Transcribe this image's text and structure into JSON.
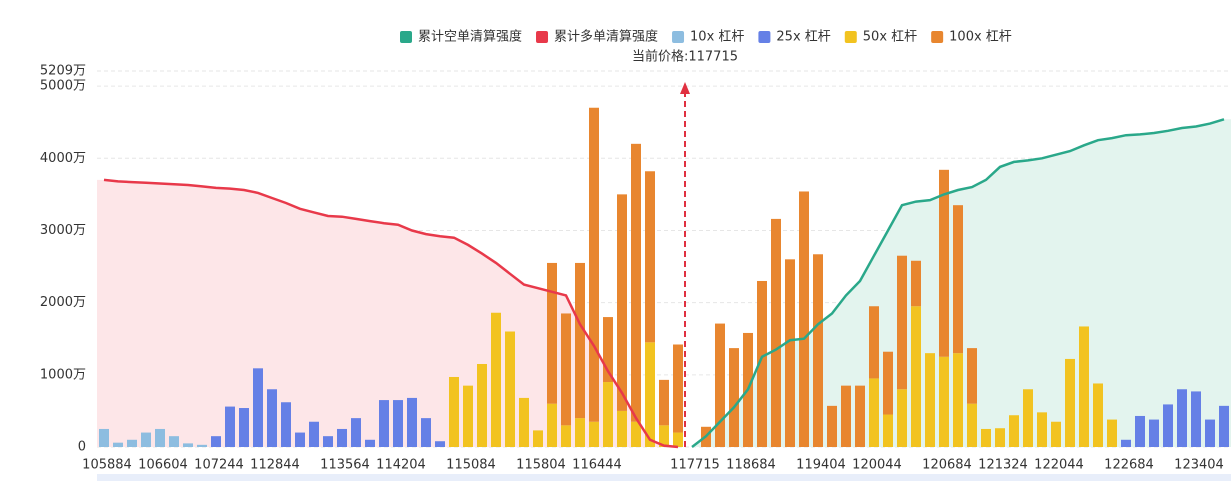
{
  "chart_data": {
    "type": "bar",
    "annotation": "当前价格:117715",
    "current_price": 117715,
    "categories": [
      "105884",
      null,
      null,
      null,
      "106604",
      null,
      null,
      null,
      "107244",
      null,
      null,
      null,
      "112844",
      null,
      null,
      null,
      null,
      "113564",
      null,
      null,
      null,
      "114204",
      null,
      null,
      null,
      null,
      "115084",
      null,
      null,
      null,
      null,
      "115804",
      null,
      null,
      null,
      "116444",
      null,
      null,
      null,
      null,
      null,
      null,
      "117715",
      null,
      null,
      null,
      "118684",
      null,
      null,
      null,
      null,
      "119404",
      null,
      null,
      null,
      "120044",
      null,
      null,
      null,
      null,
      "120684",
      null,
      null,
      null,
      "121324",
      null,
      null,
      null,
      "122044",
      null,
      null,
      null,
      null,
      "122684",
      null,
      null,
      null,
      null,
      "123404",
      null,
      null
    ],
    "series": [
      {
        "name": "累计空单清算强度",
        "type": "line",
        "color": "#2aa88a",
        "fill": "#e3f4ee",
        "values": [
          null,
          null,
          null,
          null,
          null,
          null,
          null,
          null,
          null,
          null,
          null,
          null,
          null,
          null,
          null,
          null,
          null,
          null,
          null,
          null,
          null,
          null,
          null,
          null,
          null,
          null,
          null,
          null,
          null,
          null,
          null,
          null,
          null,
          null,
          null,
          null,
          null,
          null,
          null,
          null,
          null,
          null,
          0,
          150,
          350,
          550,
          800,
          1250,
          1350,
          1480,
          1500,
          1700,
          1850,
          2100,
          2300,
          2650,
          3000,
          3350,
          3400,
          3420,
          3500,
          3560,
          3600,
          3700,
          3880,
          3950,
          3970,
          4000,
          4050,
          4100,
          4180,
          4250,
          4280,
          4320,
          4330,
          4350,
          4380,
          4420,
          4440,
          4480,
          4540
        ]
      },
      {
        "name": "累计多单清算强度",
        "type": "line",
        "color": "#e8394a",
        "fill": "#fde6e8",
        "values": [
          3700,
          3680,
          3670,
          3660,
          3650,
          3640,
          3630,
          3610,
          3590,
          3580,
          3560,
          3520,
          3450,
          3380,
          3300,
          3250,
          3200,
          3190,
          3160,
          3130,
          3100,
          3080,
          3000,
          2950,
          2920,
          2900,
          2800,
          2680,
          2550,
          2400,
          2250,
          2200,
          2150,
          2100,
          1700,
          1400,
          1050,
          750,
          400,
          100,
          20,
          0,
          null,
          null,
          null,
          null,
          null,
          null,
          null,
          null,
          null,
          null,
          null,
          null,
          null,
          null,
          null,
          null,
          null,
          null,
          null,
          null,
          null,
          null,
          null,
          null,
          null,
          null,
          null,
          null,
          null,
          null,
          null,
          null,
          null,
          null,
          null,
          null,
          null,
          null,
          null
        ]
      },
      {
        "name": "10x 杠杆",
        "type": "bar",
        "color": "#8dbde0",
        "values": [
          250,
          60,
          100,
          200,
          250,
          150,
          50,
          30,
          0,
          0,
          0,
          0,
          0,
          0,
          0,
          0,
          0,
          0,
          0,
          0,
          0,
          0,
          0,
          0,
          0,
          0,
          0,
          0,
          0,
          0,
          0,
          0,
          0,
          0,
          0,
          0,
          0,
          0,
          0,
          0,
          0,
          0,
          0,
          0,
          0,
          0,
          0,
          0,
          0,
          0,
          0,
          0,
          0,
          0,
          0,
          0,
          0,
          0,
          0,
          0,
          0,
          0,
          0,
          0,
          0,
          0,
          0,
          0,
          0,
          0,
          0,
          0,
          0,
          0,
          0,
          0,
          0,
          0,
          0,
          0,
          0
        ]
      },
      {
        "name": "25x 杠杆",
        "type": "bar",
        "color": "#6580e6",
        "values": [
          0,
          0,
          0,
          0,
          0,
          0,
          0,
          0,
          150,
          560,
          540,
          1090,
          800,
          620,
          200,
          350,
          150,
          250,
          400,
          100,
          650,
          650,
          680,
          400,
          80,
          0,
          0,
          0,
          0,
          0,
          0,
          0,
          0,
          0,
          0,
          0,
          0,
          0,
          0,
          0,
          0,
          0,
          0,
          0,
          0,
          0,
          0,
          0,
          0,
          0,
          0,
          0,
          0,
          0,
          0,
          0,
          0,
          0,
          0,
          0,
          0,
          0,
          0,
          0,
          0,
          0,
          0,
          0,
          0,
          0,
          0,
          0,
          0,
          100,
          430,
          380,
          590,
          800,
          770,
          380,
          570
        ]
      },
      {
        "name": "50x 杠杆",
        "type": "bar",
        "color": "#f2c320",
        "values": [
          0,
          0,
          0,
          0,
          0,
          0,
          0,
          0,
          0,
          0,
          0,
          0,
          0,
          0,
          0,
          0,
          0,
          0,
          0,
          0,
          0,
          0,
          0,
          0,
          0,
          970,
          850,
          1150,
          1860,
          1600,
          680,
          230,
          600,
          300,
          400,
          350,
          900,
          500,
          350,
          1450,
          300,
          200,
          0,
          0,
          0,
          0,
          0,
          0,
          0,
          0,
          0,
          0,
          0,
          0,
          0,
          950,
          450,
          800,
          1950,
          1300,
          1250,
          1300,
          600,
          250,
          260,
          440,
          800,
          480,
          350,
          1220,
          1670,
          880,
          380,
          0,
          0,
          0,
          0,
          0,
          0,
          0,
          0
        ]
      },
      {
        "name": "100x 杠杆",
        "type": "bar",
        "color": "#e8862f",
        "values": [
          0,
          0,
          0,
          0,
          0,
          0,
          0,
          0,
          0,
          0,
          0,
          0,
          0,
          0,
          0,
          0,
          0,
          0,
          0,
          0,
          0,
          0,
          0,
          0,
          0,
          0,
          0,
          0,
          0,
          0,
          0,
          0,
          1950,
          1550,
          2150,
          4350,
          900,
          3000,
          3850,
          2370,
          630,
          1220,
          0,
          280,
          1710,
          1370,
          1580,
          2300,
          3160,
          2600,
          3540,
          2670,
          570,
          850,
          850,
          1000,
          870,
          1850,
          630,
          0,
          2590,
          2050,
          770,
          0,
          0,
          0,
          0,
          0,
          0,
          0,
          0,
          0,
          0,
          0,
          0,
          0,
          0,
          0,
          0,
          0,
          0
        ]
      }
    ],
    "ylim": [
      0,
      5209
    ],
    "yticks": [
      0,
      {
        "value": 1000,
        "label": "1000万"
      },
      {
        "value": 2000,
        "label": "2000万"
      },
      {
        "value": 3000,
        "label": "3000万"
      },
      {
        "value": 4000,
        "label": "4000万"
      },
      {
        "value": 5000,
        "label": "5000万"
      },
      {
        "value": 5209,
        "label": "5209万"
      }
    ],
    "grid": true,
    "legend": "top"
  }
}
